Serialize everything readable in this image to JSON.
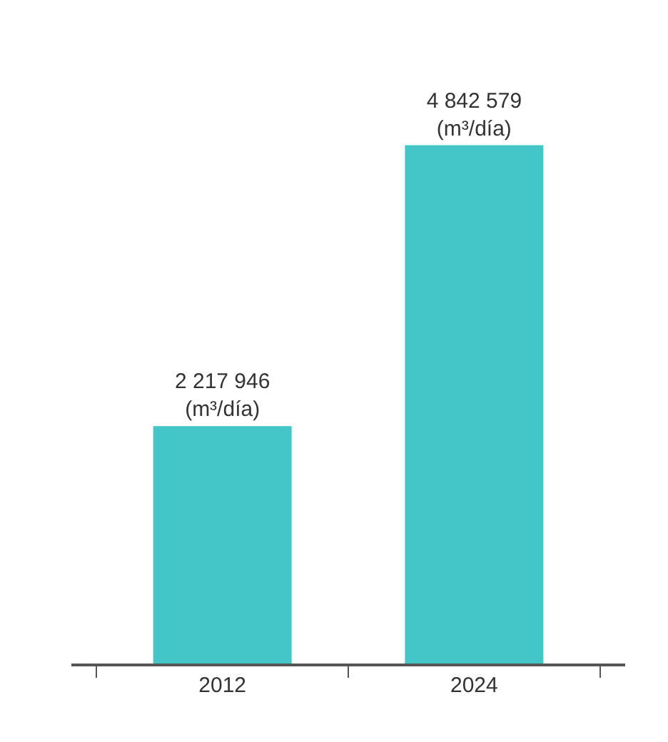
{
  "chart_data": {
    "type": "bar",
    "categories": [
      "2012",
      "2024"
    ],
    "values": [
      2217946,
      4842579
    ],
    "color": "#45c6c6",
    "value_labels": [
      "2 217 946\n(m³/día)",
      "4 842 579\n(m³/día)"
    ],
    "legend": false
  }
}
